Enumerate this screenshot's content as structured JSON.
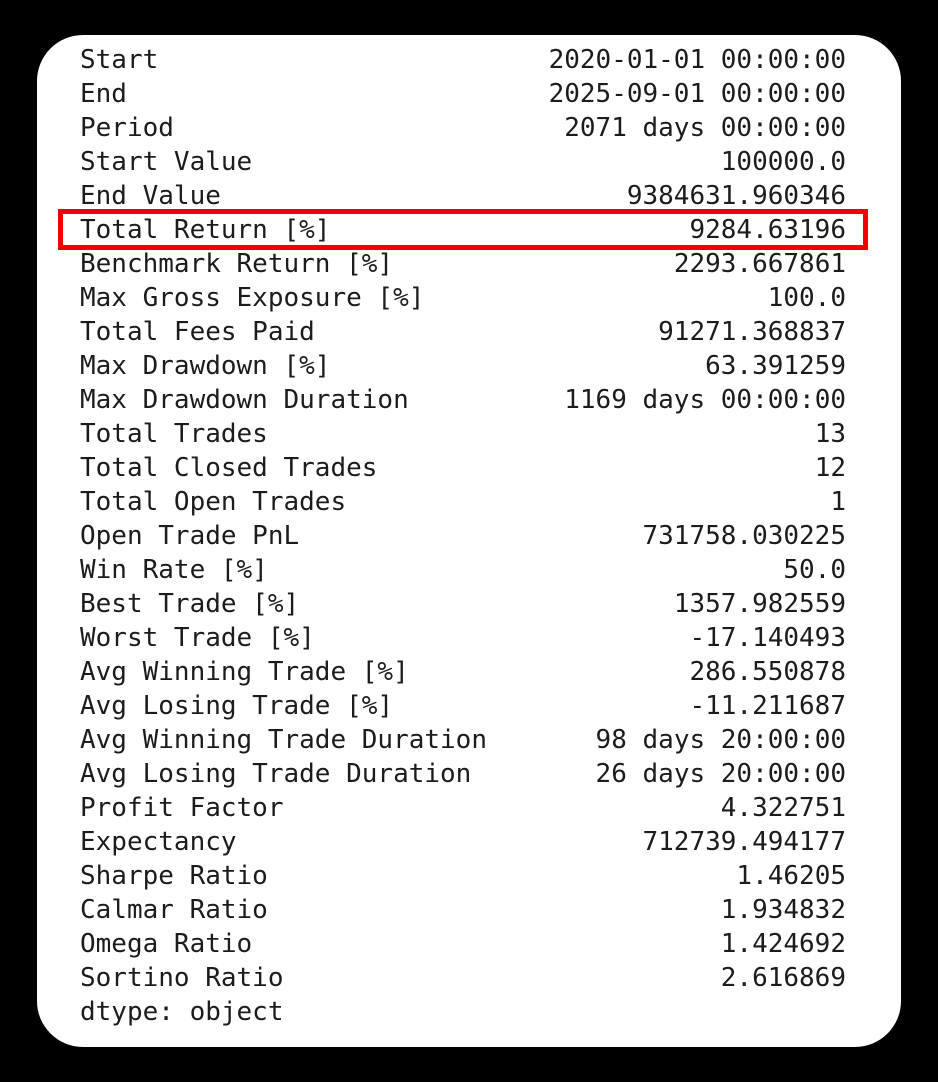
{
  "page": {
    "background": "#000000",
    "card_background": "#ffffff",
    "text_color": "#1c1c1c",
    "highlight_color": "#ee0202"
  },
  "stats": {
    "rows": [
      {
        "label": "Start",
        "value": "2020-01-01 00:00:00",
        "highlighted": false
      },
      {
        "label": "End",
        "value": "2025-09-01 00:00:00",
        "highlighted": false
      },
      {
        "label": "Period",
        "value": "2071 days 00:00:00",
        "highlighted": false
      },
      {
        "label": "Start Value",
        "value": "100000.0",
        "highlighted": false
      },
      {
        "label": "End Value",
        "value": "9384631.960346",
        "highlighted": false
      },
      {
        "label": "Total Return [%]",
        "value": "9284.63196",
        "highlighted": true
      },
      {
        "label": "Benchmark Return [%]",
        "value": "2293.667861",
        "highlighted": false
      },
      {
        "label": "Max Gross Exposure [%]",
        "value": "100.0",
        "highlighted": false
      },
      {
        "label": "Total Fees Paid",
        "value": "91271.368837",
        "highlighted": false
      },
      {
        "label": "Max Drawdown [%]",
        "value": "63.391259",
        "highlighted": false
      },
      {
        "label": "Max Drawdown Duration",
        "value": "1169 days 00:00:00",
        "highlighted": false
      },
      {
        "label": "Total Trades",
        "value": "13",
        "highlighted": false
      },
      {
        "label": "Total Closed Trades",
        "value": "12",
        "highlighted": false
      },
      {
        "label": "Total Open Trades",
        "value": "1",
        "highlighted": false
      },
      {
        "label": "Open Trade PnL",
        "value": "731758.030225",
        "highlighted": false
      },
      {
        "label": "Win Rate [%]",
        "value": "50.0",
        "highlighted": false
      },
      {
        "label": "Best Trade [%]",
        "value": "1357.982559",
        "highlighted": false
      },
      {
        "label": "Worst Trade [%]",
        "value": "-17.140493",
        "highlighted": false
      },
      {
        "label": "Avg Winning Trade [%]",
        "value": "286.550878",
        "highlighted": false
      },
      {
        "label": "Avg Losing Trade [%]",
        "value": "-11.211687",
        "highlighted": false
      },
      {
        "label": "Avg Winning Trade Duration",
        "value": "98 days 20:00:00",
        "highlighted": false
      },
      {
        "label": "Avg Losing Trade Duration",
        "value": "26 days 20:00:00",
        "highlighted": false
      },
      {
        "label": "Profit Factor",
        "value": "4.322751",
        "highlighted": false
      },
      {
        "label": "Expectancy",
        "value": "712739.494177",
        "highlighted": false
      },
      {
        "label": "Sharpe Ratio",
        "value": "1.46205",
        "highlighted": false
      },
      {
        "label": "Calmar Ratio",
        "value": "1.934832",
        "highlighted": false
      },
      {
        "label": "Omega Ratio",
        "value": "1.424692",
        "highlighted": false
      },
      {
        "label": "Sortino Ratio",
        "value": "2.616869",
        "highlighted": false
      }
    ],
    "footer": "dtype: object"
  }
}
